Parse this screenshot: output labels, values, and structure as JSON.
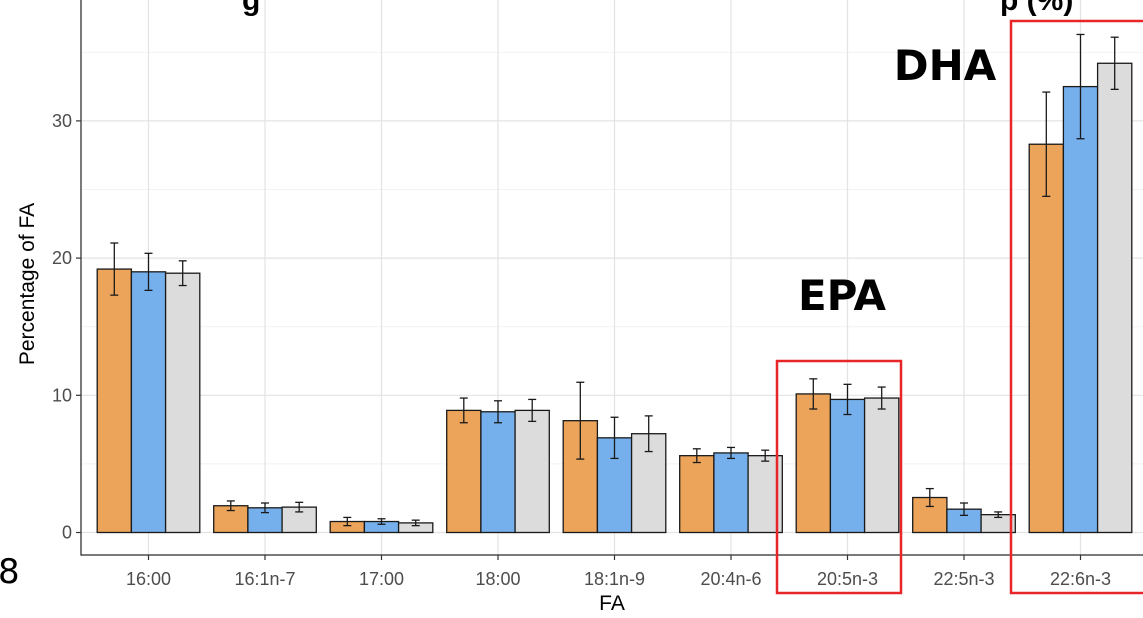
{
  "chart_data": {
    "type": "bar",
    "title_visible": "g",
    "title_visible_right": "p (%)",
    "xlabel": "FA",
    "ylabel": "Percentage of FA",
    "ylim": [
      0,
      37.5
    ],
    "yticks": [
      0,
      10,
      20,
      30
    ],
    "grid": true,
    "categories": [
      "16:00",
      "16:1n-7",
      "17:00",
      "18:00",
      "18:1n-9",
      "20:4n-6",
      "20:5n-3",
      "22:5n-3",
      "22:6n-3"
    ],
    "series": [
      {
        "values": [
          19.2,
          1.95,
          0.8,
          8.9,
          8.15,
          5.6,
          10.1,
          2.55,
          28.3
        ],
        "errors": [
          1.9,
          0.35,
          0.3,
          0.9,
          2.8,
          0.5,
          1.1,
          0.65,
          3.8
        ]
      },
      {
        "values": [
          19.0,
          1.8,
          0.8,
          8.8,
          6.9,
          5.8,
          9.7,
          1.7,
          32.5
        ],
        "errors": [
          1.35,
          0.35,
          0.2,
          0.8,
          1.5,
          0.4,
          1.1,
          0.45,
          3.8
        ]
      },
      {
        "values": [
          18.9,
          1.85,
          0.7,
          8.9,
          7.2,
          5.6,
          9.8,
          1.3,
          34.2
        ],
        "errors": [
          0.9,
          0.35,
          0.2,
          0.8,
          1.3,
          0.4,
          0.8,
          0.2,
          1.9
        ]
      }
    ],
    "colors": [
      "#eca45a",
      "#76b0ec",
      "#dcdcdc"
    ],
    "annotations": [
      {
        "text": "EPA",
        "category": "20:5n-3"
      },
      {
        "text": "DHA",
        "category": "22:6n-3"
      }
    ],
    "highlight_color": "#e8262a",
    "edge_digit": "8"
  }
}
